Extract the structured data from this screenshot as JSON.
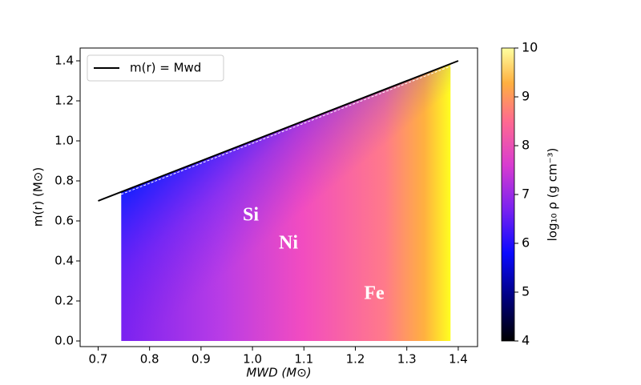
{
  "chart_data": {
    "type": "line",
    "xlabel": "MWD (M⊙)",
    "ylabel": "m(r) (M⊙)",
    "xlim": [
      0.665,
      1.4375
    ],
    "ylim": [
      -0.028,
      1.464
    ],
    "xticks": [
      0.7,
      0.8,
      0.9,
      {
        "value": 1,
        "label": "1.0"
      },
      1.1,
      1.2,
      1.3,
      1.4
    ],
    "yticks": [
      {
        "value": 0,
        "label": "0.0"
      },
      0.2,
      0.4,
      0.6,
      0.8,
      {
        "value": 1,
        "label": "1.0"
      },
      1.2,
      1.4
    ],
    "series": [
      {
        "name": "m(r) = Mwd",
        "color": "#000000",
        "x": [
          0.7,
          1.4
        ],
        "values": [
          0.7,
          1.4
        ]
      }
    ],
    "fill_xlim": [
      0.745,
      1.385
    ],
    "legend": "upper left",
    "annotations": [
      "Si",
      "Ni",
      "Fe"
    ],
    "colorbar": {
      "label": "log₁₀ ρ (g cm⁻³)",
      "clim": [
        4,
        10
      ],
      "ticks": [
        4,
        5,
        6,
        7,
        8,
        9,
        10
      ]
    }
  }
}
